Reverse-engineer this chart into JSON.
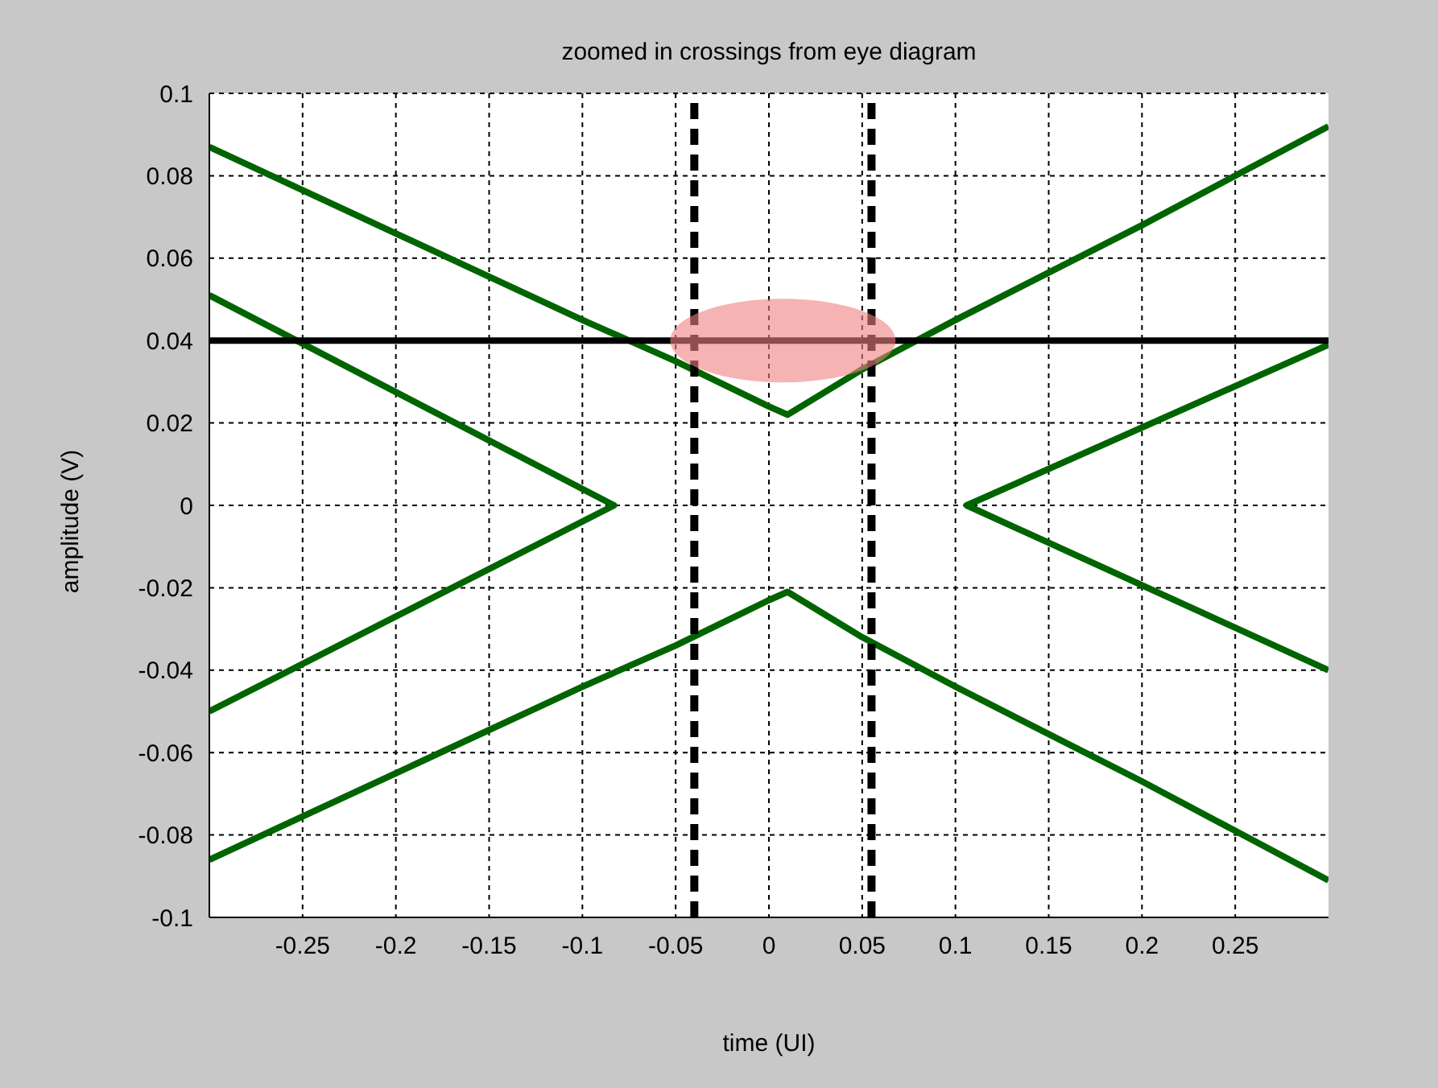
{
  "chart_data": {
    "type": "line",
    "title": "zoomed in crossings from eye diagram",
    "xlabel": "time (UI)",
    "ylabel": "amplitude (V)",
    "xlim": [
      -0.3,
      0.3
    ],
    "xticks": [
      -0.25,
      -0.2,
      -0.15,
      -0.1,
      -0.05,
      0,
      0.05,
      0.1,
      0.15,
      0.2,
      0.25
    ],
    "ylim": [
      -0.1,
      0.1
    ],
    "yticks": [
      -0.1,
      -0.08,
      -0.06,
      -0.04,
      -0.02,
      0,
      0.02,
      0.04,
      0.06,
      0.08,
      0.1
    ],
    "grid": true,
    "marker": "none",
    "line_style": "solid",
    "series": [
      {
        "color": "#006400",
        "x": [
          -0.3,
          -0.2,
          -0.1,
          -0.05,
          0,
          0.01,
          0.05,
          0.1,
          0.2,
          0.3
        ],
        "values": [
          0.087,
          0.066,
          0.045,
          0.035,
          0.024,
          0.022,
          0.033,
          0.045,
          0.068,
          0.092
        ]
      },
      {
        "color": "#006400",
        "x": [
          -0.3,
          -0.2,
          -0.1,
          -0.05,
          0,
          0.01,
          0.05,
          0.1,
          0.2,
          0.3
        ],
        "values": [
          -0.086,
          -0.065,
          -0.044,
          -0.034,
          -0.023,
          -0.021,
          -0.032,
          -0.044,
          -0.067,
          -0.091
        ]
      },
      {
        "color": "#006400",
        "x": [
          -0.3,
          -0.083,
          -0.3
        ],
        "values": [
          0.051,
          0,
          -0.05
        ]
      },
      {
        "color": "#006400",
        "x": [
          0.3,
          0.106,
          0.3
        ],
        "values": [
          0.039,
          0,
          -0.04
        ]
      }
    ],
    "ref_lines": [
      {
        "axis": "y",
        "value": 0.04,
        "color": "#000000",
        "line_style": "solid"
      },
      {
        "axis": "x",
        "value": -0.04,
        "color": "#000000",
        "line_style": "dashed"
      },
      {
        "axis": "x",
        "value": 0.055,
        "color": "#000000",
        "line_style": "dashed"
      }
    ]
  }
}
